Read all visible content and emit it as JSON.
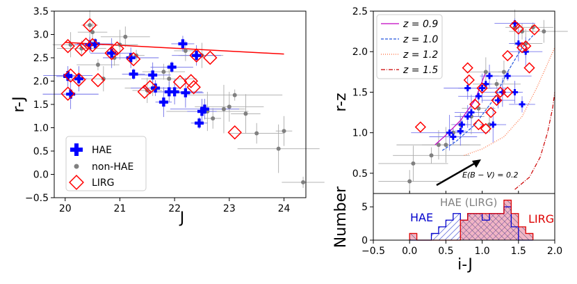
{
  "chart_data": [
    {
      "type": "scatter",
      "xlabel": "J",
      "ylabel": "r-J",
      "xlim": [
        19.8,
        24.4
      ],
      "ylim": [
        -0.5,
        3.5
      ],
      "xticks": [
        "20",
        "21",
        "22",
        "23",
        "24"
      ],
      "yticks": [
        "3.5",
        "3.0",
        "2.5",
        "2.0",
        "1.5",
        "1.0",
        "0.5",
        "0.0",
        "−0.5"
      ],
      "legend": {
        "position": "bottom-left",
        "entries": [
          "HAE",
          "non-HAE",
          "LIRG"
        ]
      },
      "colors": {
        "hae": "#0000ff",
        "nonhae": "#808080",
        "lirg": "#ff0000",
        "line": "#ff0000"
      },
      "fit_line": {
        "x": [
          20.0,
          24.0
        ],
        "y": [
          2.83,
          2.58
        ]
      },
      "hae": {
        "x": [
          20.05,
          20.25,
          20.45,
          20.85,
          21.2,
          21.25,
          21.6,
          21.65,
          21.8,
          21.9,
          21.95,
          22.0,
          22.15,
          22.2,
          22.4,
          22.45,
          22.5,
          22.55,
          20.1,
          20.05,
          20.55
        ],
        "y": [
          2.12,
          2.05,
          2.78,
          2.6,
          2.5,
          2.15,
          2.13,
          1.85,
          1.55,
          1.77,
          2.3,
          1.77,
          2.8,
          1.75,
          2.55,
          1.1,
          1.35,
          1.4,
          1.72,
          2.1,
          2.8
        ]
      },
      "nonhae": {
        "x": [
          20.1,
          20.3,
          20.45,
          20.5,
          20.6,
          20.7,
          20.9,
          21.0,
          21.1,
          21.3,
          21.5,
          21.8,
          21.9,
          22.2,
          22.4,
          22.6,
          22.7,
          22.9,
          23.0,
          23.1,
          23.3,
          23.5,
          23.9,
          24.0,
          24.35,
          22.5,
          21.6
        ],
        "y": [
          2.78,
          2.7,
          3.2,
          3.05,
          2.35,
          2.05,
          2.5,
          2.78,
          2.95,
          2.55,
          1.8,
          2.2,
          2.05,
          2.65,
          2.55,
          1.35,
          1.2,
          1.4,
          1.45,
          1.7,
          1.3,
          0.88,
          0.55,
          0.93,
          -0.17,
          2.55,
          1.85
        ]
      },
      "lirg": {
        "x": [
          20.05,
          20.1,
          20.05,
          20.25,
          20.3,
          20.38,
          20.45,
          20.5,
          20.6,
          20.85,
          20.95,
          21.25,
          21.45,
          21.55,
          22.1,
          22.3,
          22.35,
          22.4,
          22.65,
          23.1
        ],
        "y": [
          2.75,
          2.12,
          1.73,
          2.03,
          2.68,
          2.78,
          3.2,
          2.77,
          2.02,
          2.6,
          2.7,
          2.47,
          1.77,
          1.87,
          1.98,
          2.0,
          1.87,
          2.55,
          2.5,
          0.9
        ]
      }
    },
    {
      "type": "scatter",
      "xlabel": "",
      "ylabel": "r-z",
      "xlim": [
        -0.5,
        2.0
      ],
      "ylim": [
        0.25,
        2.5
      ],
      "yticks": [
        "2.5",
        "2.0",
        "1.5",
        "1.0",
        "0.5"
      ],
      "legend": {
        "position": "top-left",
        "entries": [
          "z = 0.9",
          "z = 1.0",
          "z = 1.2",
          "z = 1.5"
        ]
      },
      "annotation": "E(B − V) = 0.2",
      "tracks": [
        {
          "name": "z = 0.9",
          "color": "#c000c0",
          "style": "solid",
          "x": [
            0.35,
            0.5,
            0.7,
            0.9,
            1.05
          ],
          "y": [
            0.85,
            0.97,
            1.15,
            1.4,
            1.75
          ]
        },
        {
          "name": "z = 1.0",
          "color": "#2255dd",
          "style": "dashed",
          "x": [
            0.45,
            0.65,
            0.9,
            1.15,
            1.35,
            1.55,
            1.7
          ],
          "y": [
            0.78,
            0.9,
            1.1,
            1.4,
            1.75,
            2.05,
            2.2
          ]
        },
        {
          "name": "z = 1.2",
          "color": "#ff6633",
          "style": "dotted",
          "x": [
            0.75,
            1.0,
            1.3,
            1.55,
            1.75,
            1.9,
            2.0
          ],
          "y": [
            0.72,
            0.8,
            0.95,
            1.2,
            1.55,
            1.85,
            2.05
          ]
        },
        {
          "name": "z = 1.5",
          "color": "#cc0000",
          "style": "dashdot",
          "x": [
            1.45,
            1.65,
            1.8,
            1.9,
            1.97,
            2.0
          ],
          "y": [
            0.3,
            0.45,
            0.7,
            1.0,
            1.3,
            1.5
          ]
        }
      ],
      "hae": {
        "x": [
          0.55,
          0.6,
          0.7,
          0.72,
          0.8,
          0.85,
          0.95,
          1.0,
          1.05,
          1.1,
          1.15,
          1.22,
          1.28,
          1.35,
          1.45,
          1.5,
          1.55,
          1.6,
          1.45,
          0.8
        ],
        "y": [
          1.0,
          0.95,
          1.02,
          1.1,
          1.2,
          1.25,
          1.45,
          1.55,
          1.6,
          1.7,
          1.1,
          1.4,
          1.5,
          1.7,
          1.5,
          2.1,
          1.35,
          2.0,
          2.35,
          1.55
        ]
      },
      "nonhae": {
        "x": [
          0.0,
          0.05,
          0.3,
          0.4,
          0.6,
          0.7,
          0.85,
          0.95,
          1.05,
          1.2,
          1.3,
          1.45,
          1.55,
          1.6,
          1.7,
          1.85,
          0.5,
          1.1
        ],
        "y": [
          0.4,
          0.62,
          0.72,
          0.85,
          1.0,
          1.1,
          1.2,
          1.3,
          1.75,
          1.6,
          1.75,
          2.3,
          2.25,
          2.1,
          2.3,
          2.25,
          0.85,
          1.1
        ]
      },
      "lirg": {
        "x": [
          0.15,
          0.8,
          0.82,
          0.9,
          0.95,
          1.0,
          1.05,
          1.12,
          1.2,
          1.25,
          1.35,
          1.45,
          1.5,
          1.55,
          1.6,
          1.65,
          1.72,
          1.35
        ],
        "y": [
          1.07,
          1.8,
          1.65,
          1.35,
          1.1,
          1.55,
          1.05,
          1.25,
          1.4,
          1.5,
          1.5,
          2.32,
          2.28,
          2.05,
          2.07,
          1.8,
          2.27,
          1.95
        ]
      }
    },
    {
      "type": "bar",
      "xlabel": "i-J",
      "ylabel": "Number",
      "xlim": [
        -0.5,
        2.0
      ],
      "ylim": [
        0,
        7
      ],
      "xticks": [
        "−0.5",
        "0.0",
        "0.5",
        "1.0",
        "1.5",
        "2.0"
      ],
      "yticks": [
        "5",
        "0"
      ],
      "bin_edges": [
        0.0,
        0.1,
        0.2,
        0.3,
        0.4,
        0.5,
        0.6,
        0.7,
        0.8,
        0.9,
        1.0,
        1.1,
        1.2,
        1.3,
        1.4,
        1.5,
        1.6,
        1.7
      ],
      "series": [
        {
          "name": "HAE",
          "color": "#0000cc",
          "values": [
            0,
            0,
            0,
            1,
            2,
            3,
            4,
            3,
            4,
            4,
            3,
            4,
            4,
            5,
            2,
            0,
            0
          ]
        },
        {
          "name": "LIRG",
          "color": "#dd0000",
          "values": [
            1,
            0,
            0,
            0,
            0,
            0,
            0,
            3,
            4,
            4,
            4,
            4,
            4,
            6,
            4,
            2,
            1
          ]
        }
      ],
      "labels": {
        "hae": "HAE",
        "mid": "HAE (LIRG)",
        "lirg": "LIRG"
      }
    }
  ]
}
